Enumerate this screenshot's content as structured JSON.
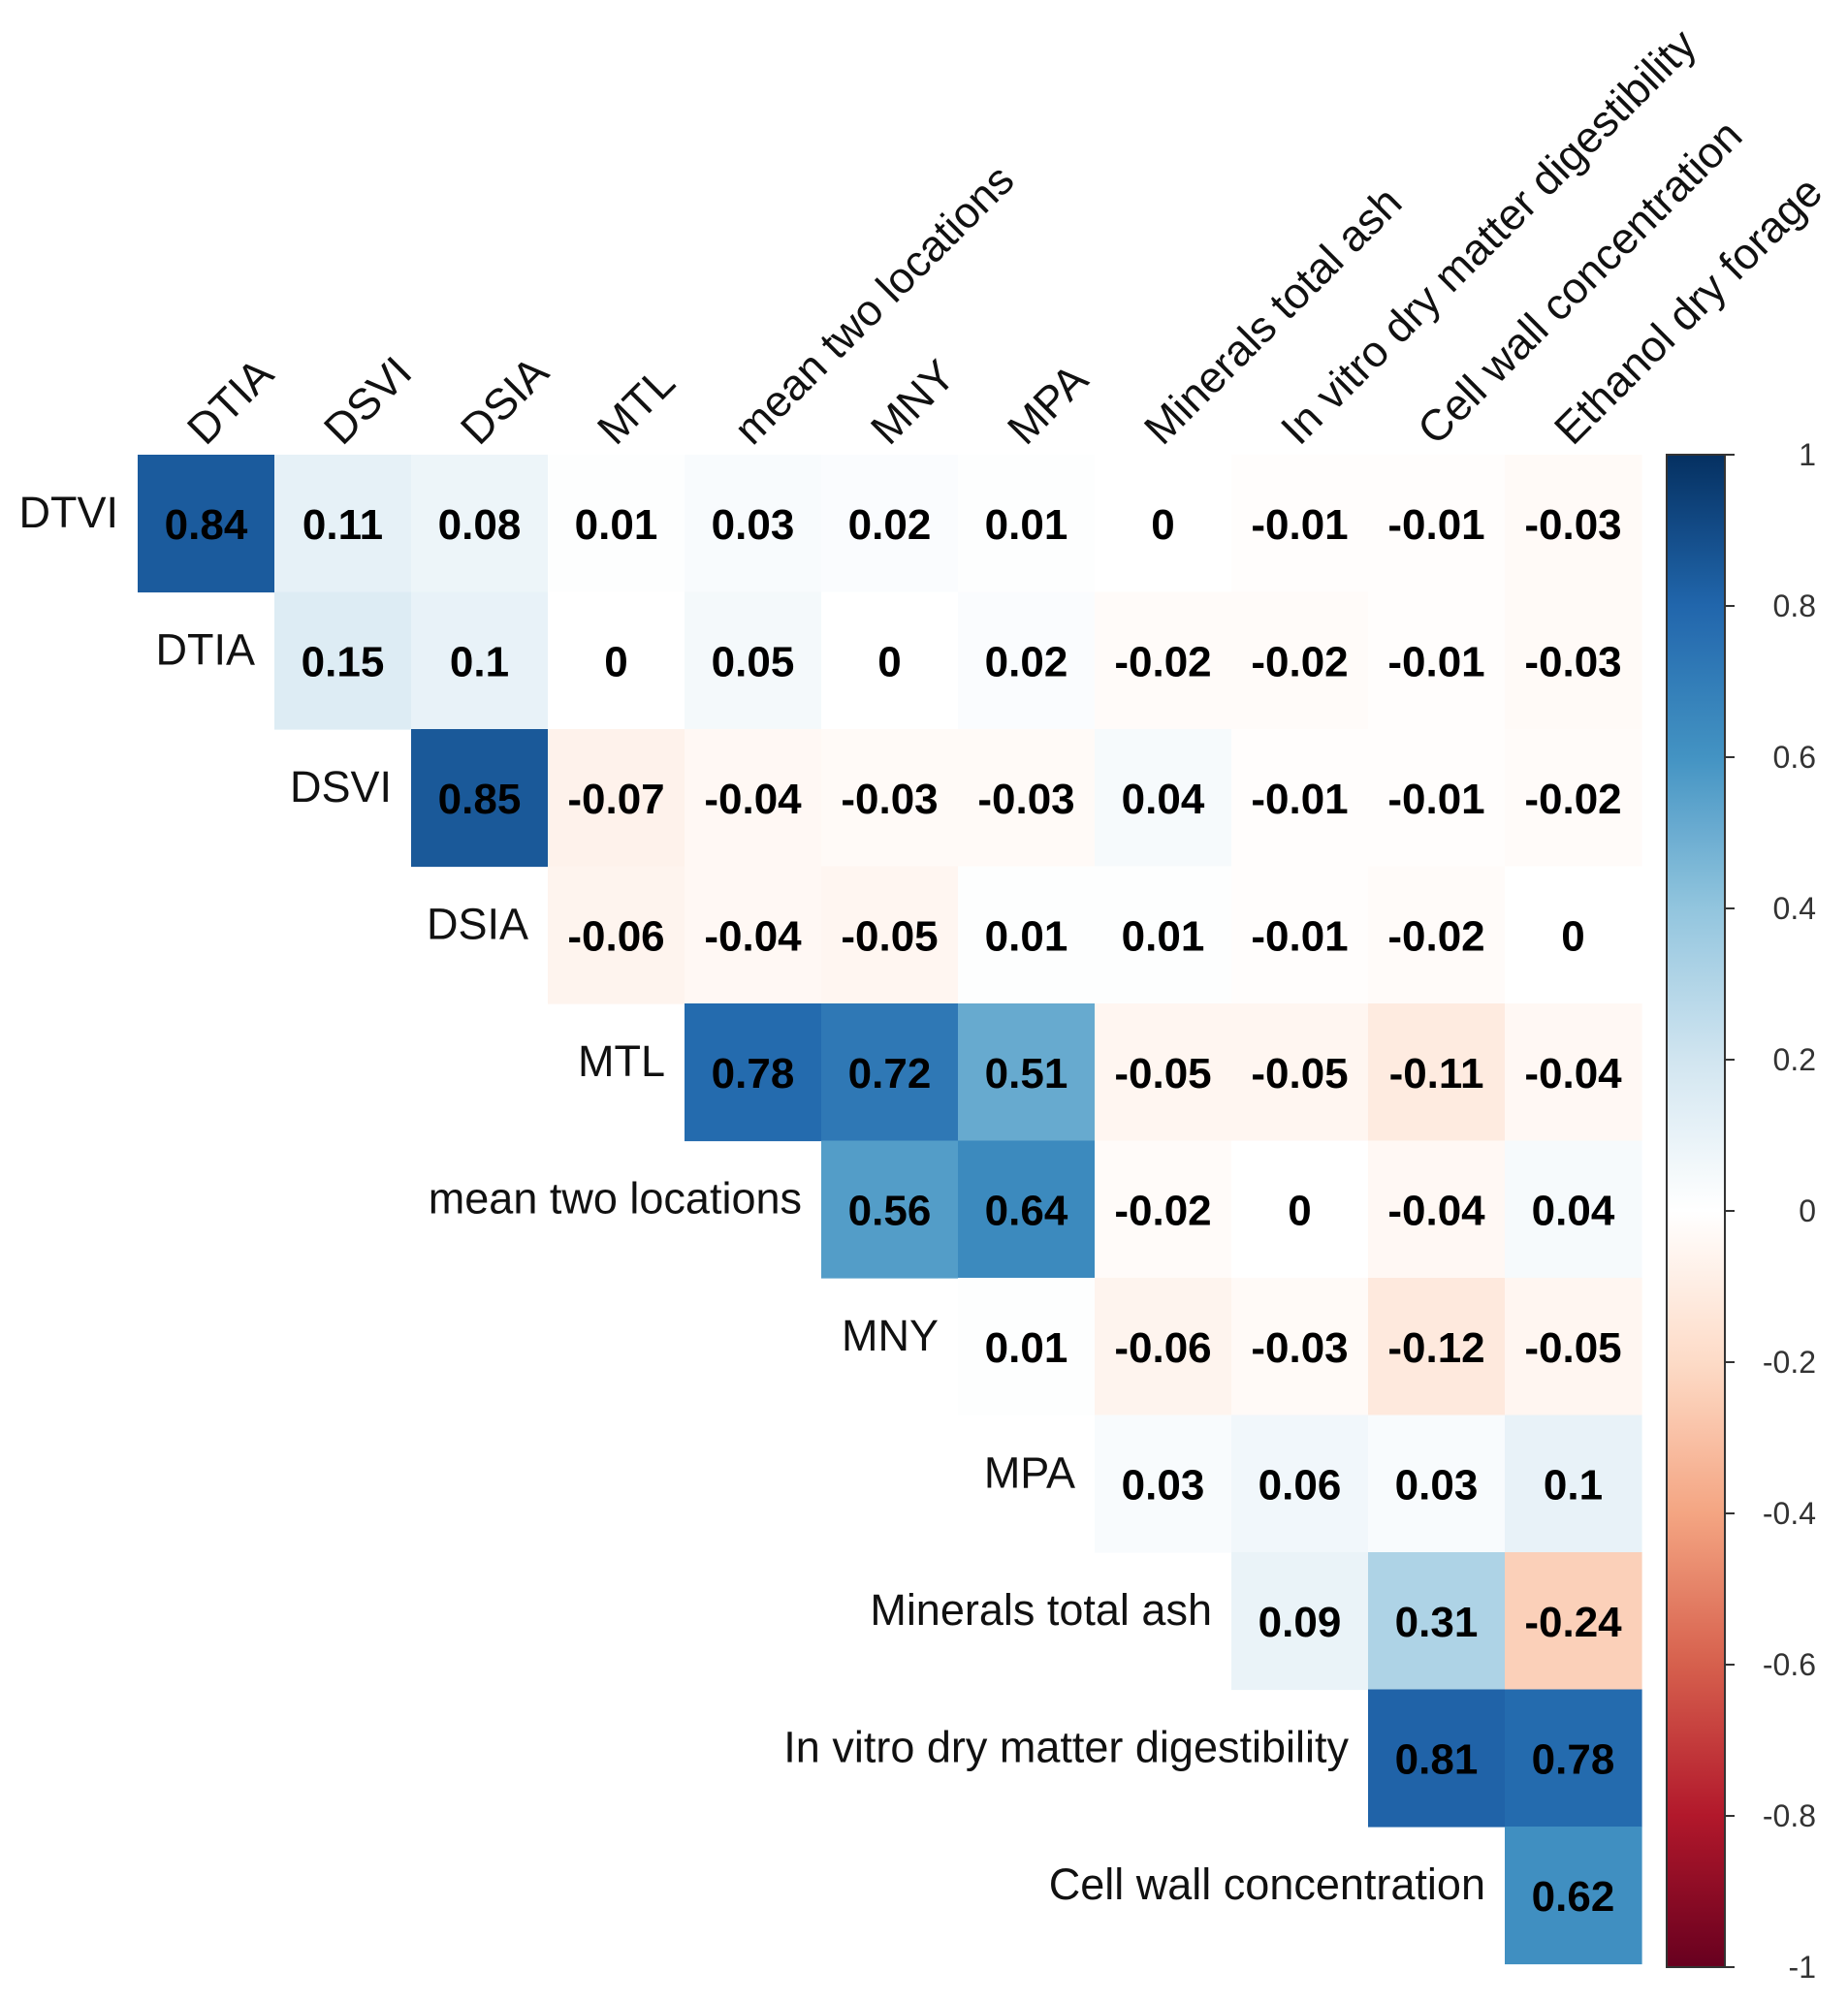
{
  "chart_data": {
    "type": "heatmap",
    "subtype": "upper-triangular correlation matrix",
    "columns": [
      "DTIA",
      "DSVI",
      "DSIA",
      "MTL",
      "mean two locations",
      "MNY",
      "MPA",
      "Minerals total ash",
      "In vitro dry matter digestibility",
      "Cell wall concentration",
      "Ethanol dry forage"
    ],
    "rows": [
      "DTVI",
      "DTIA",
      "DSVI",
      "DSIA",
      "MTL",
      "mean two locations",
      "MNY",
      "MPA",
      "Minerals total ash",
      "In vitro dry matter digestibility",
      "Cell wall concentration"
    ],
    "values": [
      [
        0.84,
        0.11,
        0.08,
        0.01,
        0.03,
        0.02,
        0.01,
        0,
        -0.01,
        -0.01,
        -0.03
      ],
      [
        null,
        0.15,
        0.1,
        0,
        0.05,
        0,
        0.02,
        -0.02,
        -0.02,
        -0.01,
        -0.03
      ],
      [
        null,
        null,
        0.85,
        -0.07,
        -0.04,
        -0.03,
        -0.03,
        0.04,
        -0.01,
        -0.01,
        -0.02
      ],
      [
        null,
        null,
        null,
        -0.06,
        -0.04,
        -0.05,
        0.01,
        0.01,
        -0.01,
        -0.02,
        0
      ],
      [
        null,
        null,
        null,
        null,
        0.78,
        0.72,
        0.51,
        -0.05,
        -0.05,
        -0.11,
        -0.04
      ],
      [
        null,
        null,
        null,
        null,
        null,
        0.56,
        0.64,
        -0.02,
        0,
        -0.04,
        0.04
      ],
      [
        null,
        null,
        null,
        null,
        null,
        null,
        0.01,
        -0.06,
        -0.03,
        -0.12,
        -0.05
      ],
      [
        null,
        null,
        null,
        null,
        null,
        null,
        null,
        0.03,
        0.06,
        0.03,
        0.1
      ],
      [
        null,
        null,
        null,
        null,
        null,
        null,
        null,
        null,
        0.09,
        0.31,
        -0.24
      ],
      [
        null,
        null,
        null,
        null,
        null,
        null,
        null,
        null,
        null,
        0.81,
        0.78
      ],
      [
        null,
        null,
        null,
        null,
        null,
        null,
        null,
        null,
        null,
        null,
        0.62
      ]
    ],
    "colorbar": {
      "range": [
        -1,
        1
      ],
      "ticks": [
        "1",
        "0.8",
        "0.6",
        "0.4",
        "0.2",
        "0",
        "-0.2",
        "-0.4",
        "-0.6",
        "-0.8",
        "-1"
      ],
      "colormap": "RdBu (red = -1, white = 0, blue = 1)"
    },
    "title": "",
    "xlabel": "",
    "ylabel": ""
  }
}
